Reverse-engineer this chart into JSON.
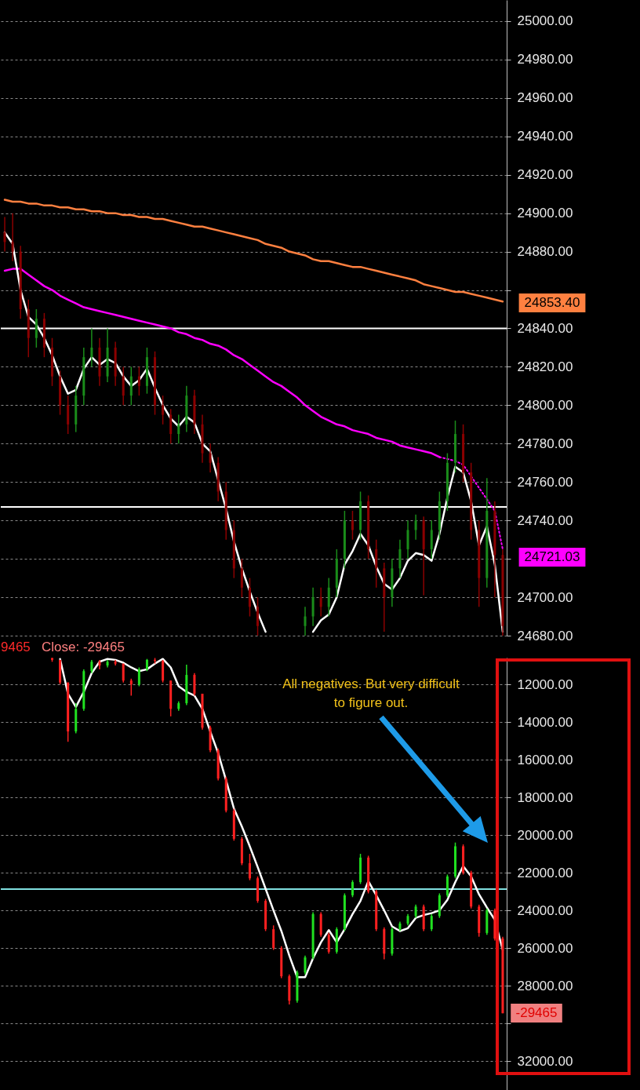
{
  "chart_data": [
    {
      "type": "candlestick",
      "tick_labels": "y",
      "grid": "y",
      "ylim": [
        24680,
        25011
      ],
      "yticks": [
        {
          "value": 24680,
          "label": "24680.00"
        },
        {
          "value": 24700,
          "label": "24700.00"
        },
        {
          "value": 24720,
          "label": null
        },
        {
          "value": 24740,
          "label": "24740.00"
        },
        {
          "value": 24760,
          "label": "24760.00"
        },
        {
          "value": 24780,
          "label": "24780.00"
        },
        {
          "value": 24800,
          "label": "24800.00"
        },
        {
          "value": 24820,
          "label": "24820.00"
        },
        {
          "value": 24840,
          "label": "24840.00"
        },
        {
          "value": 24860,
          "label": null
        },
        {
          "value": 24880,
          "label": "24880.00"
        },
        {
          "value": 24900,
          "label": "24900.00"
        },
        {
          "value": 24920,
          "label": "24920.00"
        },
        {
          "value": 24940,
          "label": "24940.00"
        },
        {
          "value": 24960,
          "label": "24960.00"
        },
        {
          "value": 24980,
          "label": "24980.00"
        },
        {
          "value": 25000,
          "label": "25000.00"
        }
      ],
      "categories": [
        null,
        null,
        null,
        null,
        null,
        null,
        null,
        null,
        null,
        null,
        null,
        null,
        null,
        null,
        null,
        null,
        null,
        null,
        null,
        null,
        null,
        null,
        null,
        null,
        null,
        null,
        null,
        null,
        null,
        null,
        null,
        null,
        null,
        null,
        null,
        null,
        null,
        null,
        null,
        null,
        null,
        null,
        null,
        null,
        null,
        null,
        null,
        null,
        null,
        null,
        null,
        null,
        null,
        null,
        null,
        null,
        null,
        null,
        null,
        null,
        null,
        null,
        null,
        null
      ],
      "ohlc": [
        [
          24890,
          24898,
          24880,
          24885
        ],
        [
          24885,
          24900,
          24875,
          24880
        ],
        [
          24880,
          24883,
          24845,
          24850
        ],
        [
          24850,
          24855,
          24825,
          24835
        ],
        [
          24835,
          24850,
          24830,
          24845
        ],
        [
          24845,
          24848,
          24825,
          24830
        ],
        [
          24830,
          24835,
          24810,
          24815
        ],
        [
          24815,
          24818,
          24795,
          24800
        ],
        [
          24800,
          24805,
          24785,
          24790
        ],
        [
          24790,
          24810,
          24786,
          24805
        ],
        [
          24805,
          24830,
          24800,
          24825
        ],
        [
          24825,
          24840,
          24820,
          24830
        ],
        [
          24830,
          24835,
          24810,
          24815
        ],
        [
          24815,
          24840,
          24812,
          24830
        ],
        [
          24830,
          24833,
          24810,
          24815
        ],
        [
          24815,
          24820,
          24800,
          24805
        ],
        [
          24805,
          24820,
          24800,
          24815
        ],
        [
          24815,
          24820,
          24805,
          24810
        ],
        [
          24810,
          24830,
          24806,
          24825
        ],
        [
          24825,
          24828,
          24795,
          24800
        ],
        [
          24800,
          24805,
          24790,
          24795
        ],
        [
          24795,
          24798,
          24780,
          24785
        ],
        [
          24785,
          24795,
          24780,
          24790
        ],
        [
          24790,
          24810,
          24786,
          24805
        ],
        [
          24805,
          24808,
          24785,
          24790
        ],
        [
          24790,
          24795,
          24770,
          24775
        ],
        [
          24775,
          24780,
          24765,
          24770
        ],
        [
          24770,
          24773,
          24750,
          24755
        ],
        [
          24755,
          24760,
          24730,
          24735
        ],
        [
          24735,
          24740,
          24710,
          24715
        ],
        [
          24715,
          24720,
          24700,
          24705
        ],
        [
          24705,
          24710,
          24690,
          24695
        ],
        [
          24695,
          24700,
          24680,
          24685
        ],
        null,
        null,
        null,
        null,
        null,
        [
          24685,
          24695,
          24680,
          24690
        ],
        [
          24690,
          24705,
          24685,
          24700
        ],
        [
          24700,
          24705,
          24690,
          24695
        ],
        [
          24695,
          24710,
          24690,
          24705
        ],
        [
          24705,
          24725,
          24700,
          24720
        ],
        [
          24720,
          24745,
          24715,
          24740
        ],
        [
          24740,
          24745,
          24730,
          24735
        ],
        [
          24735,
          24755,
          24730,
          24750
        ],
        [
          24750,
          24753,
          24720,
          24725
        ],
        [
          24725,
          24730,
          24705,
          24715
        ],
        [
          24715,
          24718,
          24682,
          24700
        ],
        [
          24700,
          24720,
          24695,
          24715
        ],
        [
          24715,
          24730,
          24710,
          24725
        ],
        [
          24725,
          24740,
          24720,
          24735
        ],
        [
          24735,
          24743,
          24730,
          24740
        ],
        [
          24740,
          24742,
          24701,
          24725
        ],
        [
          24725,
          24740,
          24720,
          24735
        ],
        [
          24735,
          24755,
          24730,
          24750
        ],
        [
          24750,
          24775,
          24745,
          24770
        ],
        [
          24770,
          24792,
          24765,
          24785
        ],
        [
          24785,
          24790,
          24760,
          24765
        ],
        [
          24765,
          24770,
          24730,
          24735
        ],
        [
          24735,
          24740,
          24695,
          24710
        ],
        [
          24710,
          24762,
          24705,
          24745
        ],
        [
          24745,
          24750,
          24700,
          24722
        ],
        [
          24722,
          24725,
          24680,
          24685
        ]
      ],
      "colors": [
        "#8b0000",
        "#8b0000",
        "#8b0000",
        "#8b0000",
        "#1a8c1a",
        "#8b0000",
        "#8b0000",
        "#8b0000",
        "#8b0000",
        "#1a8c1a",
        "#1a8c1a",
        "#1a8c1a",
        "#8b0000",
        "#1a8c1a",
        "#8b0000",
        "#8b0000",
        "#1a8c1a",
        "#8b0000",
        "#1a8c1a",
        "#8b0000",
        "#8b0000",
        "#8b0000",
        "#1a8c1a",
        "#1a8c1a",
        "#8b0000",
        "#8b0000",
        "#8b0000",
        "#8b0000",
        "#8b0000",
        "#8b0000",
        "#8b0000",
        "#8b0000",
        "#8b0000",
        null,
        null,
        null,
        null,
        null,
        "#1a8c1a",
        "#1a8c1a",
        "#8b0000",
        "#1a8c1a",
        "#1a8c1a",
        "#1a8c1a",
        "#8b0000",
        "#1a8c1a",
        "#8b0000",
        "#8b0000",
        "#8b0000",
        "#1a8c1a",
        "#1a8c1a",
        "#1a8c1a",
        "#1a8c1a",
        "#8b0000",
        "#1a8c1a",
        "#1a8c1a",
        "#1a8c1a",
        "#1a8c1a",
        "#8b0000",
        "#8b0000",
        "#8b0000",
        "#1a8c1a",
        "#8b0000",
        "#8b0000"
      ],
      "series": [
        {
          "type": "line",
          "color": "#ff8040",
          "values": [
            24907,
            24906,
            24906,
            24905,
            24905,
            24904,
            24904,
            24903,
            24903,
            24902,
            24902,
            24901,
            24901,
            24900,
            24900,
            24899,
            24899,
            24898,
            24898,
            24897,
            24897,
            24896,
            24895,
            24894,
            24893,
            24893,
            24892,
            24891,
            24890,
            24889,
            24888,
            24887,
            24886,
            24884,
            24883,
            24882,
            24880,
            24879,
            24878,
            24876,
            24875,
            24875,
            24874,
            24873,
            24872,
            24872,
            24871,
            24870,
            24869,
            24868,
            24867,
            24866,
            24865,
            24863,
            24862,
            24861,
            24860,
            24859,
            24859,
            24858,
            24857,
            24856,
            24855,
            24854
          ]
        },
        {
          "type": "line",
          "color": "#ff00ff",
          "values": [
            24870,
            24871,
            24871,
            24868,
            24865,
            24862,
            24860,
            24857,
            24855,
            24853,
            24851,
            24850,
            24849,
            24848,
            24847,
            24846,
            24845,
            24844,
            24843,
            24842,
            24841,
            24840,
            24838,
            24837,
            24835,
            24834,
            24832,
            24831,
            24829,
            24826,
            24824,
            24821,
            24818,
            24815,
            24812,
            24810,
            24807,
            24804,
            24800,
            24797,
            24794,
            24792,
            24790,
            24789,
            24787,
            24786,
            24785,
            24783,
            24782,
            24781,
            24779,
            24778,
            24777,
            24776,
            24775,
            24773,
            null,
            null,
            null,
            null,
            null,
            null,
            null,
            null
          ]
        },
        {
          "type": "line",
          "color": "#ff00ff",
          "line_style": "dotted",
          "values": [
            null,
            null,
            null,
            null,
            null,
            null,
            null,
            null,
            null,
            null,
            null,
            null,
            null,
            null,
            null,
            null,
            null,
            null,
            null,
            null,
            null,
            null,
            null,
            null,
            null,
            null,
            null,
            null,
            null,
            null,
            null,
            null,
            null,
            null,
            null,
            null,
            null,
            null,
            null,
            null,
            null,
            null,
            null,
            null,
            null,
            null,
            null,
            null,
            null,
            null,
            null,
            null,
            null,
            null,
            null,
            24773,
            24772,
            24771,
            24769,
            24763,
            24757,
            24751,
            24745,
            24725
          ]
        },
        {
          "type": "line",
          "color": "#ffffff",
          "values": [
            24890,
            24884,
            24860,
            24846,
            24842,
            24835,
            24826,
            24815,
            24806,
            24808,
            24819,
            24825,
            24821,
            24824,
            24822,
            24815,
            24810,
            24813,
            24819,
            24809,
            24800,
            24793,
            24789,
            24794,
            24791,
            24780,
            24776,
            24761,
            24746,
            24729,
            24715,
            24703,
            24692,
            24682,
            null,
            null,
            null,
            null,
            null,
            24682,
            24688,
            24691,
            24700,
            24717,
            24724,
            24733,
            24727,
            24716,
            24707,
            24704,
            24710,
            24719,
            24723,
            24722,
            24719,
            24733,
            24752,
            24768,
            24765,
            24750,
            24727,
            24737,
            24717,
            24682
          ]
        }
      ],
      "ref_lines": [
        {
          "axis": "y",
          "value": 24840,
          "color": "#ffffff"
        },
        {
          "axis": "y",
          "value": 24747,
          "color": "#ffffff"
        }
      ],
      "annotations": [
        "24853.40",
        "24721.03"
      ]
    },
    {
      "type": "candlestick",
      "tick_labels": "y",
      "grid": "y",
      "ylim": [
        33540,
        10580
      ],
      "yticks": [
        {
          "value": 12000,
          "label": "12000.00"
        },
        {
          "value": 14000,
          "label": "14000.00"
        },
        {
          "value": 16000,
          "label": "16000.00"
        },
        {
          "value": 18000,
          "label": "18000.00"
        },
        {
          "value": 20000,
          "label": "20000.00"
        },
        {
          "value": 22000,
          "label": "22000.00"
        },
        {
          "value": 24000,
          "label": "24000.00"
        },
        {
          "value": 26000,
          "label": "26000.00"
        },
        {
          "value": 28000,
          "label": "28000.00"
        },
        {
          "value": 30000,
          "label": null
        },
        {
          "value": 32000,
          "label": "32000.00"
        }
      ],
      "categories": [
        null,
        null,
        null,
        null,
        null,
        null,
        null,
        null,
        null,
        null,
        null,
        null,
        null,
        null,
        null,
        null,
        null,
        null,
        null,
        null,
        null,
        null,
        null,
        null,
        null,
        null,
        null,
        null,
        null,
        null,
        null,
        null,
        null,
        null,
        null,
        null,
        null,
        null,
        null,
        null,
        null,
        null,
        null,
        null,
        null,
        null,
        null,
        null,
        null,
        null,
        null,
        null,
        null,
        null,
        null,
        null,
        null,
        null,
        null,
        null,
        null,
        null,
        null,
        null
      ],
      "ohlc": [
        null,
        null,
        null,
        null,
        null,
        null,
        [
          10600,
          10800,
          10600,
          10700
        ],
        [
          10700,
          12000,
          10700,
          11900
        ],
        [
          11900,
          15050,
          11900,
          14500
        ],
        [
          14500,
          14600,
          13000,
          13300
        ],
        [
          13300,
          13400,
          11200,
          11300
        ],
        [
          11300,
          11400,
          10700,
          10800
        ],
        [
          10800,
          11200,
          10700,
          11000
        ],
        [
          11000,
          11100,
          10700,
          10800
        ],
        [
          10800,
          11000,
          10700,
          10900
        ],
        [
          10900,
          11900,
          10900,
          11800
        ],
        [
          11800,
          12600,
          11700,
          12000
        ],
        [
          12000,
          12100,
          11100,
          11200
        ],
        [
          11200,
          11300,
          10650,
          10700
        ],
        [
          10700,
          10900,
          10600,
          10750
        ],
        [
          10750,
          11900,
          10700,
          11800
        ],
        [
          11800,
          13700,
          11800,
          13300
        ],
        [
          13300,
          13400,
          12900,
          13000
        ],
        [
          13000,
          13100,
          10950,
          11500
        ],
        [
          11500,
          12600,
          11400,
          12500
        ],
        [
          12500,
          14400,
          12500,
          14300
        ],
        [
          14300,
          15600,
          14200,
          15500
        ],
        [
          15500,
          17100,
          15400,
          17000
        ],
        [
          17000,
          18800,
          16900,
          18700
        ],
        [
          18700,
          20300,
          18600,
          20200
        ],
        [
          20200,
          21600,
          20100,
          21500
        ],
        [
          21500,
          22400,
          21000,
          22300
        ],
        [
          22300,
          23600,
          22200,
          23500
        ],
        [
          23500,
          25100,
          23400,
          25000
        ],
        [
          25000,
          26100,
          24800,
          26000
        ],
        [
          26000,
          27600,
          25900,
          27500
        ],
        [
          27500,
          29000,
          27400,
          28800
        ],
        [
          28800,
          28900,
          27200,
          27300
        ],
        [
          27300,
          27400,
          26400,
          26500
        ],
        [
          26500,
          26600,
          24100,
          24200
        ],
        [
          24200,
          25400,
          24100,
          25300
        ],
        [
          25300,
          26300,
          25200,
          26200
        ],
        [
          26200,
          26300,
          24900,
          25000
        ],
        [
          25000,
          25100,
          23100,
          23200
        ],
        [
          23200,
          23300,
          22400,
          22500
        ],
        [
          22500,
          22600,
          21000,
          21200
        ],
        [
          21200,
          23100,
          21100,
          23000
        ],
        [
          23000,
          25100,
          22900,
          25000
        ],
        [
          25000,
          26600,
          24900,
          26300
        ],
        [
          26300,
          26400,
          24900,
          25000
        ],
        [
          25000,
          25100,
          24600,
          24700
        ],
        [
          24700,
          24800,
          24200,
          24300
        ],
        [
          24300,
          24400,
          23700,
          23800
        ],
        [
          23800,
          25100,
          23700,
          25000
        ],
        [
          25000,
          25100,
          24200,
          24300
        ],
        [
          24300,
          24400,
          23100,
          23200
        ],
        [
          23200,
          23300,
          22100,
          22200
        ],
        [
          22200,
          22300,
          20400,
          20600
        ],
        [
          20600,
          22100,
          20500,
          22000
        ],
        [
          22000,
          23900,
          21900,
          23800
        ],
        [
          23800,
          25400,
          23700,
          25200
        ],
        [
          25200,
          25300,
          23900,
          24000
        ],
        [
          24000,
          25600,
          23900,
          25500
        ],
        [
          25500,
          29465,
          25400,
          29465
        ]
      ],
      "colors": [
        null,
        null,
        null,
        null,
        null,
        null,
        "#ff2020",
        "#ff2020",
        "#ff2020",
        "#20e020",
        "#20e020",
        "#20e020",
        "#ff2020",
        "#20e020",
        "#ff2020",
        "#ff2020",
        "#ff2020",
        "#20e020",
        "#20e020",
        "#ff2020",
        "#ff2020",
        "#ff2020",
        "#20e020",
        "#20e020",
        "#ff2020",
        "#ff2020",
        "#ff2020",
        "#ff2020",
        "#ff2020",
        "#ff2020",
        "#ff2020",
        "#ff2020",
        "#ff2020",
        "#ff2020",
        "#ff2020",
        "#ff2020",
        "#ff2020",
        "#20e020",
        "#20e020",
        "#20e020",
        "#ff2020",
        "#ff2020",
        "#20e020",
        "#20e020",
        "#20e020",
        "#20e020",
        "#ff2020",
        "#ff2020",
        "#ff2020",
        "#20e020",
        "#20e020",
        "#20e020",
        "#20e020",
        "#ff2020",
        "#20e020",
        "#20e020",
        "#20e020",
        "#20e020",
        "#ff2020",
        "#ff2020",
        "#ff2020",
        "#20e020",
        "#ff2020",
        "#ff2020"
      ],
      "series": [
        {
          "type": "line",
          "color": "#ffffff",
          "values": [
            null,
            null,
            null,
            null,
            null,
            null,
            null,
            10650,
            12500,
            13200,
            12400,
            11400,
            10800,
            10650,
            10700,
            10850,
            11100,
            11300,
            11200,
            10900,
            10650,
            11100,
            12100,
            12400,
            12600,
            13300,
            14500,
            15650,
            17100,
            18600,
            19550,
            20600,
            21700,
            22850,
            24000,
            25100,
            26400,
            27550,
            27550,
            26550,
            25700,
            25050,
            25700,
            25000,
            24200,
            23500,
            22450,
            23200,
            24000,
            24850,
            25100,
            24950,
            24400,
            24250,
            24150,
            24000,
            23450,
            22500,
            21650,
            22200,
            23150,
            23850,
            24500,
            26100
          ]
        }
      ],
      "ref_lines": [
        {
          "axis": "y",
          "value": 22875,
          "color": "#80e0e0"
        }
      ],
      "annotations": [
        "9465",
        "Close: -29465",
        "All negatives. But very difficult to figure out.",
        "-29465"
      ]
    }
  ]
}
